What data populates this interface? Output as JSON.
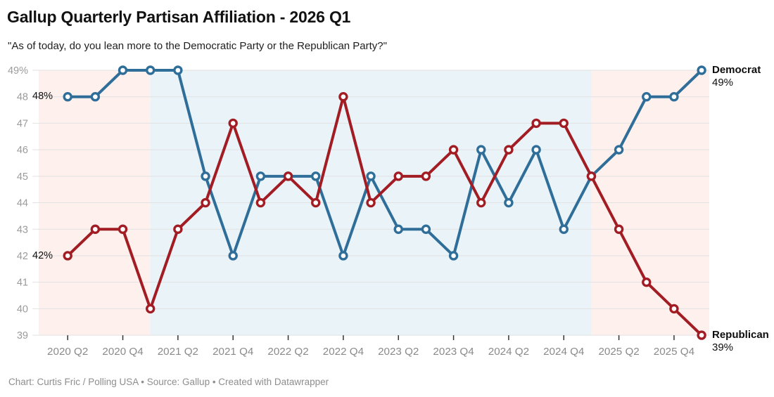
{
  "header": {
    "title": "Gallup Quarterly Partisan Affiliation - 2026 Q1",
    "subtitle": "\"As of today, do you lean more to the Democratic Party or the Republican Party?\""
  },
  "footer": {
    "text": "Chart: Curtis Fric / Polling USA • Source: Gallup • Created with Datawrapper"
  },
  "chart_data": {
    "type": "line",
    "x": [
      "2020 Q2",
      "2020 Q3",
      "2020 Q4",
      "2021 Q1",
      "2021 Q2",
      "2021 Q3",
      "2021 Q4",
      "2022 Q1",
      "2022 Q2",
      "2022 Q3",
      "2022 Q4",
      "2023 Q1",
      "2023 Q2",
      "2023 Q3",
      "2023 Q4",
      "2024 Q1",
      "2024 Q2",
      "2024 Q3",
      "2024 Q4",
      "2025 Q1",
      "2025 Q2",
      "2025 Q3",
      "2025 Q4",
      "2026 Q1"
    ],
    "series": [
      {
        "name": "Democrat",
        "color": "#2f6e99",
        "values": [
          48,
          48,
          49,
          49,
          49,
          45,
          42,
          45,
          45,
          45,
          42,
          45,
          43,
          43,
          42,
          46,
          44,
          46,
          43,
          45,
          46,
          48,
          48,
          49
        ],
        "start_label": "48%",
        "end_value_label": "49%"
      },
      {
        "name": "Republican",
        "color": "#a21d23",
        "values": [
          42,
          43,
          43,
          40,
          43,
          44,
          47,
          44,
          45,
          44,
          48,
          44,
          45,
          45,
          46,
          44,
          46,
          47,
          47,
          45,
          43,
          41,
          40,
          39
        ],
        "start_label": "42%",
        "end_value_label": "39%"
      }
    ],
    "ylim": [
      39,
      49
    ],
    "y_ticks": [
      {
        "v": 49,
        "label": "49%"
      },
      {
        "v": 48,
        "label": "48"
      },
      {
        "v": 47,
        "label": "47"
      },
      {
        "v": 46,
        "label": "46"
      },
      {
        "v": 45,
        "label": "45"
      },
      {
        "v": 44,
        "label": "44"
      },
      {
        "v": 43,
        "label": "43"
      },
      {
        "v": 42,
        "label": "42"
      },
      {
        "v": 41,
        "label": "41"
      },
      {
        "v": 40,
        "label": "40"
      },
      {
        "v": 39,
        "label": "39"
      }
    ],
    "x_ticks": [
      {
        "index": 0,
        "label": "2020 Q2"
      },
      {
        "index": 2,
        "label": "2020 Q4"
      },
      {
        "index": 4,
        "label": "2021 Q2"
      },
      {
        "index": 6,
        "label": "2021 Q4"
      },
      {
        "index": 8,
        "label": "2022 Q2"
      },
      {
        "index": 10,
        "label": "2022 Q4"
      },
      {
        "index": 12,
        "label": "2023 Q2"
      },
      {
        "index": 14,
        "label": "2023 Q4"
      },
      {
        "index": 16,
        "label": "2024 Q2"
      },
      {
        "index": 18,
        "label": "2024 Q4"
      },
      {
        "index": 20,
        "label": "2025 Q2"
      },
      {
        "index": 22,
        "label": "2025 Q4"
      }
    ],
    "bands": [
      {
        "from_index": null,
        "to_index": 3,
        "color": "#fdf0ed"
      },
      {
        "from_index": 3,
        "to_index": 19,
        "color": "#eaf3f8"
      },
      {
        "from_index": 19,
        "to_index": null,
        "color": "#fdf0ed"
      }
    ],
    "grid": true,
    "legend_position": "line-end-labels"
  }
}
